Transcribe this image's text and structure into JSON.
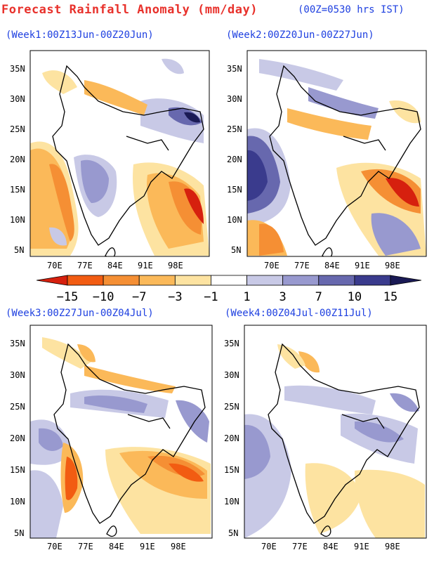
{
  "header": {
    "title": "Forecast Rainfall Anomaly (mm/day)",
    "note": "(00Z=0530 hrs IST)"
  },
  "axes": {
    "lat_labels": [
      "35N",
      "30N",
      "25N",
      "20N",
      "15N",
      "10N",
      "5N"
    ],
    "lon_labels": [
      "70E",
      "77E",
      "84E",
      "91E",
      "98E"
    ]
  },
  "colorbar": {
    "labels": [
      "−15",
      "−10",
      "−7",
      "−3",
      "−1",
      "1",
      "3",
      "7",
      "10",
      "15"
    ],
    "colors": [
      "#d6200e",
      "#f25c12",
      "#f58f34",
      "#fbb959",
      "#fde3a1",
      "#ffffff",
      "#c8c9e6",
      "#9899cf",
      "#6768ae",
      "#3a3b8d",
      "#1a1a55"
    ]
  },
  "panels": [
    {
      "id": "week1",
      "label": "(Week1:00Z13Jun-00Z20Jun)"
    },
    {
      "id": "week2",
      "label": "(Week2:00Z20Jun-00Z27Jun)"
    },
    {
      "id": "week3",
      "label": "(Week3:00Z27Jun-00Z04Jul)"
    },
    {
      "id": "week4",
      "label": "(Week4:00Z04Jul-00Z11Jul)"
    }
  ]
}
